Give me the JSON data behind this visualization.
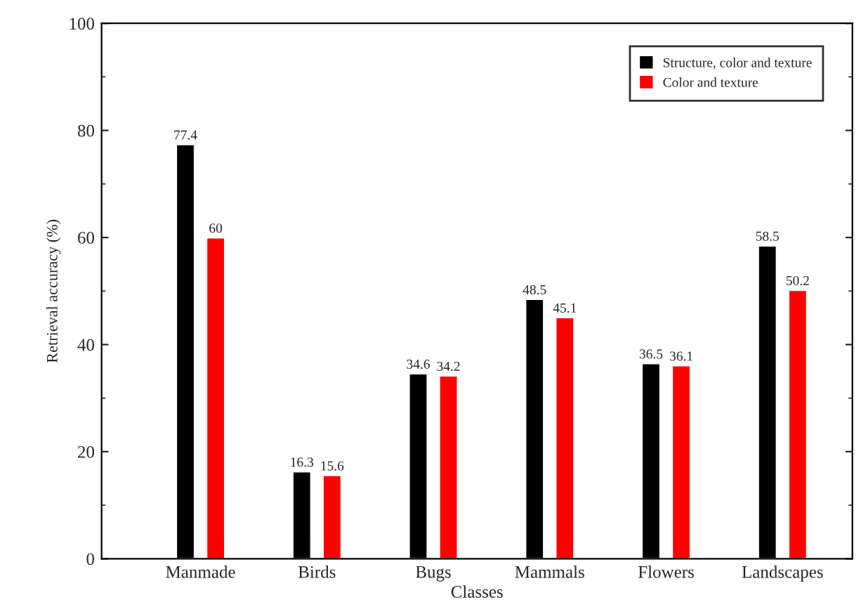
{
  "chart_data": {
    "type": "bar",
    "xlabel": "Classes",
    "ylabel": "Retrieval accuracy (%)",
    "categories": [
      "Manmade",
      "Birds",
      "Bugs",
      "Mammals",
      "Flowers",
      "Landscapes"
    ],
    "series": [
      {
        "name": "Structure, color and texture",
        "color": "#000000",
        "values": [
          77.4,
          16.3,
          34.6,
          48.5,
          36.5,
          58.5
        ]
      },
      {
        "name": "Color and texture",
        "color": "#ff0000",
        "values": [
          60,
          15.6,
          34.2,
          45.1,
          36.1,
          50.2
        ]
      }
    ],
    "ylim": [
      0,
      100
    ],
    "yticks": [
      0,
      20,
      40,
      60,
      80,
      100
    ],
    "data_labels": true,
    "legend": "top right",
    "grid": false
  }
}
